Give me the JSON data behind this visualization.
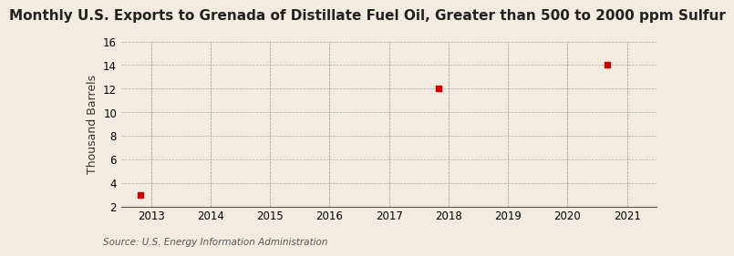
{
  "title": "Monthly U.S. Exports to Grenada of Distillate Fuel Oil, Greater than 500 to 2000 ppm Sulfur",
  "ylabel": "Thousand Barrels",
  "source": "Source: U.S. Energy Information Administration",
  "background_color": "#f2ece0",
  "plot_bg_color": "#f2ece0",
  "data_x": [
    2012.83,
    2017.83,
    2020.67
  ],
  "data_y": [
    3,
    12,
    14
  ],
  "marker_color": "#cc0000",
  "marker_size": 5,
  "xlim": [
    2012.5,
    2021.5
  ],
  "ylim": [
    2,
    16
  ],
  "yticks": [
    2,
    4,
    6,
    8,
    10,
    12,
    14,
    16
  ],
  "xticks": [
    2013,
    2014,
    2015,
    2016,
    2017,
    2018,
    2019,
    2020,
    2021
  ],
  "title_fontsize": 11,
  "label_fontsize": 9,
  "tick_fontsize": 8.5,
  "source_fontsize": 7.5
}
